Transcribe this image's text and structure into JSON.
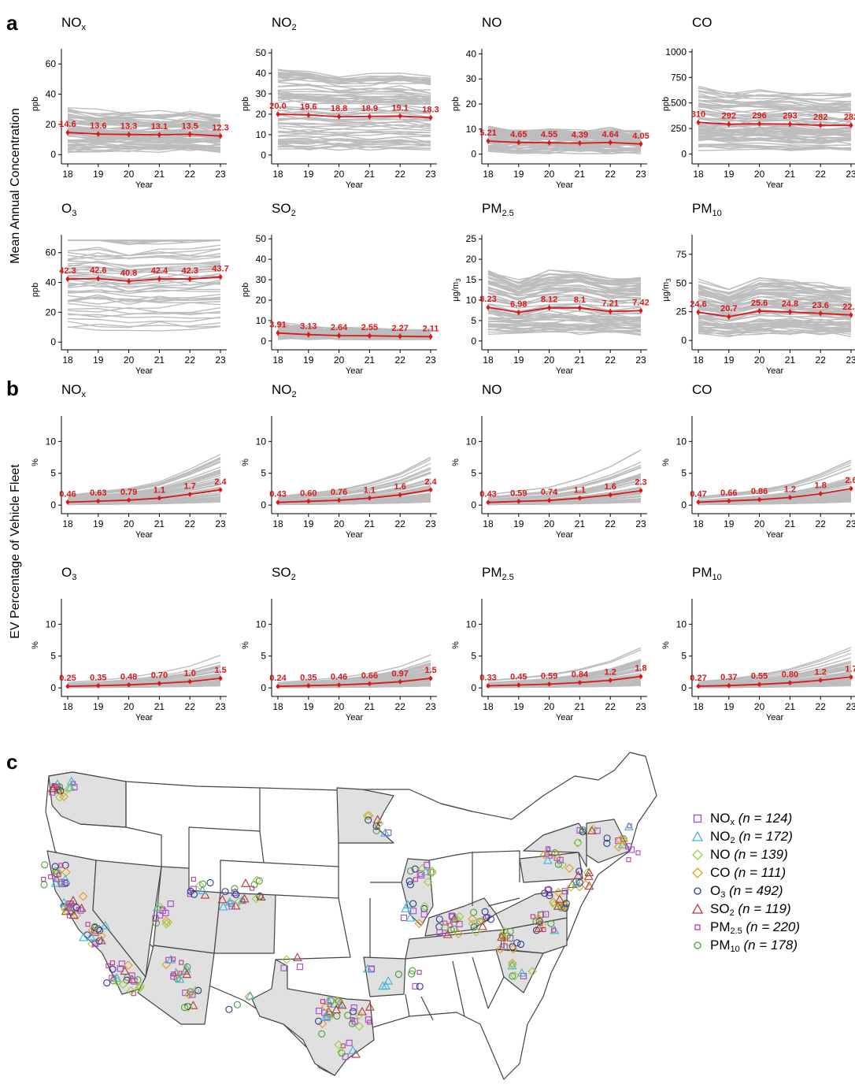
{
  "figure": {
    "panel_labels": [
      "a",
      "b",
      "c"
    ],
    "ylabel_a": "Mean Annual Concentration",
    "ylabel_b": "EV Percentage of Vehicle Fleet"
  },
  "colors": {
    "mean_line": "#d7191c",
    "site_lines": "#bdbdbd",
    "state_fill": "#e0e0e0",
    "state_border": "#444444"
  },
  "chart_data": [
    {
      "panel": "a",
      "type": "line",
      "title": "NO",
      "title_sub": "x",
      "ylabel": "ppb",
      "xlabel": "Year",
      "x": [
        "18",
        "19",
        "20",
        "21",
        "22",
        "23"
      ],
      "ylim": [
        -3,
        70
      ],
      "yticks": [
        0,
        20,
        40,
        60
      ],
      "series": [
        {
          "values": [
            14.6,
            13.6,
            13.3,
            13.1,
            13.5,
            12.3
          ],
          "labels": [
            "14.6",
            "13.6",
            "13.3",
            "13.1",
            "13.5",
            "12.3"
          ]
        }
      ]
    },
    {
      "panel": "a",
      "type": "line",
      "title": "NO",
      "title_sub": "2",
      "ylabel": "ppb",
      "xlabel": "Year",
      "x": [
        "18",
        "19",
        "20",
        "21",
        "22",
        "23"
      ],
      "ylim": [
        -2,
        52
      ],
      "yticks": [
        0,
        10,
        20,
        30,
        40,
        50
      ],
      "series": [
        {
          "values": [
            20.0,
            19.6,
            18.8,
            18.9,
            19.1,
            18.3
          ],
          "labels": [
            "20.0",
            "19.6",
            "18.8",
            "18.9",
            "19.1",
            "18.3"
          ]
        }
      ]
    },
    {
      "panel": "a",
      "type": "line",
      "title": "NO",
      "title_sub": "",
      "ylabel": "ppb",
      "xlabel": "Year",
      "x": [
        "18",
        "19",
        "20",
        "21",
        "22",
        "23"
      ],
      "ylim": [
        -2,
        42
      ],
      "yticks": [
        0,
        10,
        20,
        30,
        40
      ],
      "series": [
        {
          "values": [
            5.21,
            4.65,
            4.55,
            4.39,
            4.64,
            4.05
          ],
          "labels": [
            "5.21",
            "4.65",
            "4.55",
            "4.39",
            "4.64",
            "4.05"
          ]
        }
      ]
    },
    {
      "panel": "a",
      "type": "line",
      "title": "CO",
      "title_sub": "",
      "ylabel": "ppb",
      "xlabel": "Year",
      "x": [
        "18",
        "19",
        "20",
        "21",
        "22",
        "23"
      ],
      "ylim": [
        -50,
        1030
      ],
      "yticks": [
        0,
        250,
        500,
        750,
        1000
      ],
      "series": [
        {
          "values": [
            310,
            292,
            296,
            293,
            282,
            282
          ],
          "labels": [
            "310",
            "292",
            "296",
            "293",
            "282",
            "282"
          ]
        }
      ]
    },
    {
      "panel": "a",
      "type": "line",
      "title": "O",
      "title_sub": "3",
      "ylabel": "ppb",
      "xlabel": "Year",
      "x": [
        "18",
        "19",
        "20",
        "21",
        "22",
        "23"
      ],
      "ylim": [
        -2,
        72
      ],
      "yticks": [
        0,
        20,
        40,
        60
      ],
      "series": [
        {
          "values": [
            42.3,
            42.6,
            40.8,
            42.4,
            42.3,
            43.7
          ],
          "labels": [
            "42.3",
            "42.6",
            "40.8",
            "42.4",
            "42.3",
            "43.7"
          ]
        }
      ]
    },
    {
      "panel": "a",
      "type": "line",
      "title": "SO",
      "title_sub": "2",
      "ylabel": "ppb",
      "xlabel": "Year",
      "x": [
        "18",
        "19",
        "20",
        "21",
        "22",
        "23"
      ],
      "ylim": [
        -2,
        52
      ],
      "yticks": [
        0,
        10,
        20,
        30,
        40,
        50
      ],
      "series": [
        {
          "values": [
            3.91,
            3.13,
            2.64,
            2.55,
            2.27,
            2.11
          ],
          "labels": [
            "3.91",
            "3.13",
            "2.64",
            "2.55",
            "2.27",
            "2.11"
          ]
        }
      ]
    },
    {
      "panel": "a",
      "type": "line",
      "title": "PM",
      "title_sub": "2.5",
      "ylabel": "µg/m",
      "ylabel_sub": "3",
      "xlabel": "Year",
      "x": [
        "18",
        "19",
        "20",
        "21",
        "22",
        "23"
      ],
      "ylim": [
        -1,
        26
      ],
      "yticks": [
        0,
        5,
        10,
        15,
        20,
        25
      ],
      "series": [
        {
          "values": [
            8.23,
            6.98,
            8.12,
            8.1,
            7.21,
            7.42
          ],
          "labels": [
            "8.23",
            "6.98",
            "8.12",
            "8.1",
            "7.21",
            "7.42"
          ]
        }
      ]
    },
    {
      "panel": "a",
      "type": "line",
      "title": "PM",
      "title_sub": "10",
      "ylabel": "µg/m",
      "ylabel_sub": "3",
      "xlabel": "Year",
      "x": [
        "18",
        "19",
        "20",
        "21",
        "22",
        "23"
      ],
      "ylim": [
        -4,
        92
      ],
      "yticks": [
        0,
        25,
        50,
        75
      ],
      "series": [
        {
          "values": [
            24.6,
            20.7,
            25.6,
            24.8,
            23.6,
            22.2
          ],
          "labels": [
            "24.6",
            "20.7",
            "25.6",
            "24.8",
            "23.6",
            "22.2"
          ]
        }
      ]
    },
    {
      "panel": "b",
      "type": "line",
      "title": "NO",
      "title_sub": "x",
      "ylabel": "%",
      "xlabel": "Year",
      "x": [
        "18",
        "19",
        "20",
        "21",
        "22",
        "23"
      ],
      "ylim": [
        -0.6,
        14
      ],
      "yticks": [
        0,
        5,
        10
      ],
      "series": [
        {
          "values": [
            0.46,
            0.63,
            0.79,
            1.1,
            1.7,
            2.4
          ],
          "labels": [
            "0.46",
            "0.63",
            "0.79",
            "1.1",
            "1.7",
            "2.4"
          ]
        }
      ]
    },
    {
      "panel": "b",
      "type": "line",
      "title": "NO",
      "title_sub": "2",
      "ylabel": "%",
      "xlabel": "Year",
      "x": [
        "18",
        "19",
        "20",
        "21",
        "22",
        "23"
      ],
      "ylim": [
        -0.6,
        14
      ],
      "yticks": [
        0,
        5,
        10
      ],
      "series": [
        {
          "values": [
            0.43,
            0.6,
            0.76,
            1.1,
            1.6,
            2.4
          ],
          "labels": [
            "0.43",
            "0.60",
            "0.76",
            "1.1",
            "1.6",
            "2.4"
          ]
        }
      ]
    },
    {
      "panel": "b",
      "type": "line",
      "title": "NO",
      "title_sub": "",
      "ylabel": "%",
      "xlabel": "Year",
      "x": [
        "18",
        "19",
        "20",
        "21",
        "22",
        "23"
      ],
      "ylim": [
        -0.6,
        14
      ],
      "yticks": [
        0,
        5,
        10
      ],
      "series": [
        {
          "values": [
            0.43,
            0.59,
            0.74,
            1.1,
            1.6,
            2.3
          ],
          "labels": [
            "0.43",
            "0.59",
            "0.74",
            "1.1",
            "1.6",
            "2.3"
          ]
        }
      ]
    },
    {
      "panel": "b",
      "type": "line",
      "title": "CO",
      "title_sub": "",
      "ylabel": "%",
      "xlabel": "Year",
      "x": [
        "18",
        "19",
        "20",
        "21",
        "22",
        "23"
      ],
      "ylim": [
        -0.6,
        14
      ],
      "yticks": [
        0,
        5,
        10
      ],
      "series": [
        {
          "values": [
            0.47,
            0.66,
            0.86,
            1.2,
            1.8,
            2.6
          ],
          "labels": [
            "0.47",
            "0.66",
            "0.86",
            "1.2",
            "1.8",
            "2.6"
          ]
        }
      ]
    },
    {
      "panel": "b",
      "type": "line",
      "title": "O",
      "title_sub": "3",
      "ylabel": "%",
      "xlabel": "Year",
      "x": [
        "18",
        "19",
        "20",
        "21",
        "22",
        "23"
      ],
      "ylim": [
        -0.6,
        14
      ],
      "yticks": [
        0,
        5,
        10
      ],
      "series": [
        {
          "values": [
            0.25,
            0.35,
            0.48,
            0.7,
            1.0,
            1.5
          ],
          "labels": [
            "0.25",
            "0.35",
            "0.48",
            "0.70",
            "1.0",
            "1.5"
          ]
        }
      ]
    },
    {
      "panel": "b",
      "type": "line",
      "title": "SO",
      "title_sub": "2",
      "ylabel": "%",
      "xlabel": "Year",
      "x": [
        "18",
        "19",
        "20",
        "21",
        "22",
        "23"
      ],
      "ylim": [
        -0.6,
        14
      ],
      "yticks": [
        0,
        5,
        10
      ],
      "series": [
        {
          "values": [
            0.24,
            0.35,
            0.46,
            0.66,
            0.97,
            1.5
          ],
          "labels": [
            "0.24",
            "0.35",
            "0.46",
            "0.66",
            "0.97",
            "1.5"
          ]
        }
      ]
    },
    {
      "panel": "b",
      "type": "line",
      "title": "PM",
      "title_sub": "2.5",
      "ylabel": "%",
      "xlabel": "Year",
      "x": [
        "18",
        "19",
        "20",
        "21",
        "22",
        "23"
      ],
      "ylim": [
        -0.6,
        14
      ],
      "yticks": [
        0,
        5,
        10
      ],
      "series": [
        {
          "values": [
            0.33,
            0.45,
            0.59,
            0.84,
            1.2,
            1.8
          ],
          "labels": [
            "0.33",
            "0.45",
            "0.59",
            "0.84",
            "1.2",
            "1.8"
          ]
        }
      ]
    },
    {
      "panel": "b",
      "type": "line",
      "title": "PM",
      "title_sub": "10",
      "ylabel": "%",
      "xlabel": "Year",
      "x": [
        "18",
        "19",
        "20",
        "21",
        "22",
        "23"
      ],
      "ylim": [
        -0.6,
        14
      ],
      "yticks": [
        0,
        5,
        10
      ],
      "series": [
        {
          "values": [
            0.27,
            0.37,
            0.55,
            0.8,
            1.2,
            1.7
          ],
          "labels": [
            "0.27",
            "0.37",
            "0.55",
            "0.80",
            "1.2",
            "1.7"
          ]
        }
      ]
    }
  ],
  "map": {
    "legend": [
      {
        "name": "NO",
        "sub": "x",
        "n": "(n = 124)",
        "marker": "square",
        "color": "#a64ac9"
      },
      {
        "name": "NO",
        "sub": "2",
        "n": "(n = 172)",
        "marker": "triangle",
        "color": "#3cb4d8"
      },
      {
        "name": "NO",
        "sub": "",
        "n": "(n = 139)",
        "marker": "diamond",
        "color": "#9ad03c"
      },
      {
        "name": "CO",
        "sub": "",
        "n": "(n = 111)",
        "marker": "diamond",
        "color": "#e39b1a"
      },
      {
        "name": "O",
        "sub": "3",
        "n": "(n = 492)",
        "marker": "circle",
        "color": "#2b3a8f"
      },
      {
        "name": "SO",
        "sub": "2",
        "n": "(n = 119)",
        "marker": "triangle",
        "color": "#b23a3a"
      },
      {
        "name": "PM",
        "sub": "2.5",
        "n": "(n = 220)",
        "marker": "smallsquare",
        "color": "#c0399a"
      },
      {
        "name": "PM",
        "sub": "10",
        "n": "(n = 178)",
        "marker": "circle",
        "color": "#4f9a3a"
      }
    ]
  }
}
